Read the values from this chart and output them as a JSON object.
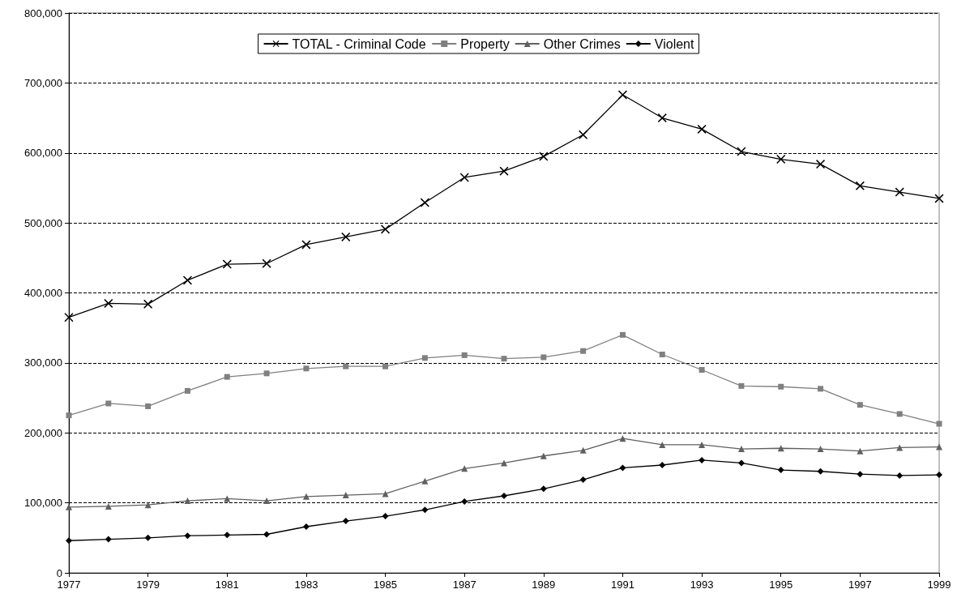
{
  "chart_data": {
    "type": "line",
    "x": [
      1977,
      1978,
      1979,
      1980,
      1981,
      1982,
      1983,
      1984,
      1985,
      1986,
      1987,
      1988,
      1989,
      1990,
      1991,
      1992,
      1993,
      1994,
      1995,
      1996,
      1997,
      1998,
      1999
    ],
    "series": [
      {
        "name": "TOTAL - Criminal Code",
        "color": "#000000",
        "marker": "cross",
        "values": [
          365000,
          385000,
          384000,
          418000,
          441000,
          442000,
          469000,
          480000,
          491000,
          529000,
          565000,
          574000,
          595000,
          626000,
          683000,
          650000,
          634000,
          602000,
          591000,
          584000,
          553000,
          544000,
          535000
        ]
      },
      {
        "name": "Property",
        "color": "#808080",
        "marker": "square",
        "values": [
          225000,
          242000,
          238000,
          260000,
          280000,
          285000,
          292000,
          295000,
          295000,
          307000,
          311000,
          306000,
          308000,
          317000,
          340000,
          312000,
          290000,
          267000,
          266000,
          263000,
          240000,
          227000,
          213000
        ]
      },
      {
        "name": "Other Crimes",
        "color": "#606060",
        "marker": "triangle",
        "values": [
          94000,
          95000,
          97000,
          103000,
          106000,
          103000,
          109000,
          111000,
          113000,
          131000,
          149000,
          157000,
          167000,
          175000,
          192000,
          183000,
          183000,
          177000,
          178000,
          177000,
          174000,
          179000,
          180000
        ]
      },
      {
        "name": "Violent",
        "color": "#000000",
        "marker": "diamond",
        "values": [
          46000,
          48000,
          50000,
          53000,
          54000,
          55000,
          66000,
          74000,
          81000,
          90000,
          102000,
          110000,
          120000,
          133000,
          150000,
          154000,
          161000,
          157000,
          147000,
          145000,
          141000,
          139000,
          140000
        ]
      }
    ],
    "xlim": [
      1977,
      1999
    ],
    "xticks": [
      1977,
      1979,
      1981,
      1983,
      1985,
      1987,
      1989,
      1991,
      1993,
      1995,
      1997,
      1999
    ],
    "ylim": [
      0,
      800000
    ],
    "yticks": [
      0,
      {
        "value": 100000,
        "label": "100,000"
      },
      {
        "value": 200000,
        "label": "200,000"
      },
      {
        "value": 300000,
        "label": "300,000"
      },
      {
        "value": 400000,
        "label": "400,000"
      },
      {
        "value": 500000,
        "label": "500,000"
      },
      {
        "value": 600000,
        "label": "600,000"
      },
      {
        "value": 700000,
        "label": "700,000"
      },
      {
        "value": 800000,
        "label": "800,000"
      }
    ],
    "grid": "y",
    "legend": "top",
    "line_style": "solid"
  }
}
